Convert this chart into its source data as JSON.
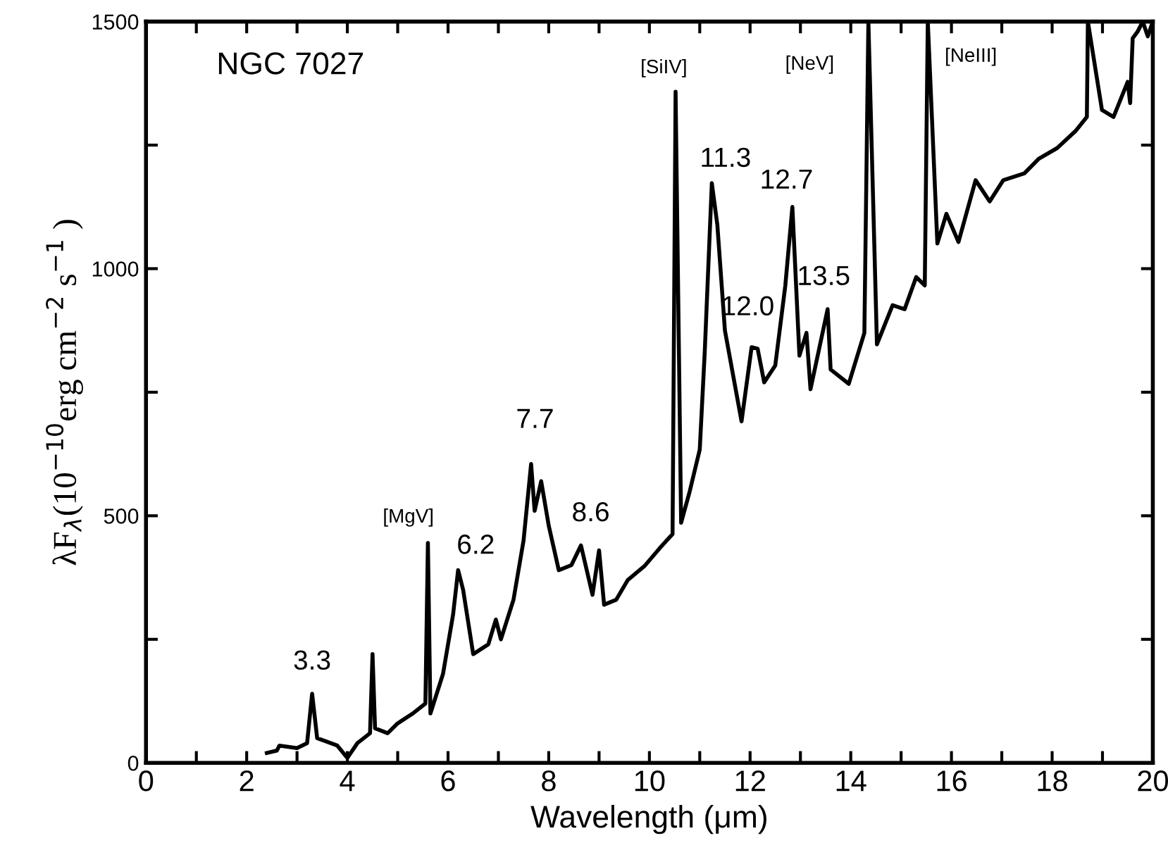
{
  "chart_data": {
    "type": "line",
    "title": "NGC 7027",
    "xlabel": "Wavelength (μm)",
    "ylabel": "λF$_{λ}$(10$^{−10}$erg cm$^{−2}$ s$^{−1}$ )",
    "xlim": [
      0,
      20
    ],
    "ylim": [
      0,
      1500
    ],
    "xticks": [
      0,
      {
        "value": 1,
        "label": null
      },
      2,
      {
        "value": 3,
        "label": null
      },
      4,
      {
        "value": 5,
        "label": null
      },
      6,
      {
        "value": 7,
        "label": null
      },
      8,
      {
        "value": 9,
        "label": null
      },
      10,
      {
        "value": 11,
        "label": null
      },
      12,
      {
        "value": 13,
        "label": null
      },
      14,
      {
        "value": 15,
        "label": null
      },
      16,
      {
        "value": 17,
        "label": null
      },
      18,
      {
        "value": 19,
        "label": null
      },
      20
    ],
    "yticks": [
      0,
      {
        "value": 250,
        "label": null
      },
      500,
      {
        "value": 750,
        "label": null
      },
      1000,
      {
        "value": 1250,
        "label": null
      },
      1500
    ],
    "grid": false,
    "legend": false,
    "series": [
      {
        "color": "#000000",
        "x": [
          2.4,
          2.6,
          2.65,
          3.0,
          3.2,
          3.3,
          3.4,
          3.8,
          4.0,
          4.2,
          4.45,
          4.5,
          4.55,
          4.8,
          5.0,
          5.3,
          5.55,
          5.6,
          5.65,
          5.9,
          6.1,
          6.2,
          6.3,
          6.5,
          6.8,
          6.95,
          7.05,
          7.3,
          7.5,
          7.65,
          7.72,
          7.85,
          8.0,
          8.2,
          8.45,
          8.64,
          8.87,
          9.0,
          9.1,
          9.34,
          9.57,
          9.9,
          10.21,
          10.46,
          10.52,
          10.63,
          10.8,
          11.0,
          11.1,
          11.24,
          11.35,
          11.5,
          11.83,
          12.03,
          12.15,
          12.28,
          12.5,
          12.7,
          12.84,
          12.98,
          13.12,
          13.2,
          13.54,
          13.6,
          13.96,
          14.27,
          14.35,
          14.52,
          14.83,
          15.07,
          15.3,
          15.47,
          15.53,
          15.72,
          15.9,
          16.14,
          16.48,
          16.76,
          17.03,
          17.45,
          17.73,
          18.1,
          18.46,
          18.69,
          18.71,
          18.99,
          19.22,
          19.5,
          19.55,
          19.6,
          19.7,
          19.8,
          19.9,
          20.0
        ],
        "values": [
          20,
          25,
          35,
          30,
          40,
          140,
          50,
          35,
          10,
          40,
          60,
          220,
          70,
          60,
          80,
          100,
          120,
          445,
          100,
          180,
          300,
          390,
          350,
          220,
          240,
          290,
          250,
          330,
          450,
          605,
          510,
          570,
          480,
          390,
          400,
          440,
          340,
          430,
          320,
          330,
          370,
          398,
          435,
          463,
          1358,
          486,
          549,
          634,
          833,
          1173,
          1088,
          875,
          691,
          841,
          838,
          770,
          804,
          966,
          1125,
          824,
          870,
          756,
          918,
          796,
          767,
          870,
          1500,
          847,
          926,
          918,
          983,
          966,
          1500,
          1051,
          1111,
          1054,
          1179,
          1136,
          1179,
          1193,
          1222,
          1244,
          1278,
          1307,
          1500,
          1321,
          1307,
          1378,
          1335,
          1466,
          1480,
          1500,
          1470,
          1500
        ]
      }
    ],
    "annotations": [
      {
        "text": "3.3",
        "x": 3.3,
        "y": 140
      },
      {
        "text": "[MgV]",
        "x": 5.6,
        "y": 445
      },
      {
        "text": "6.2",
        "x": 6.2,
        "y": 390
      },
      {
        "text": "7.7",
        "x": 7.65,
        "y": 605
      },
      {
        "text": "8.6",
        "x": 8.64,
        "y": 440
      },
      {
        "text": "[SiIV]",
        "x": 10.52,
        "y": 1358
      },
      {
        "text": "11.3",
        "x": 11.24,
        "y": 1173
      },
      {
        "text": "12.0",
        "x": 12.03,
        "y": 841
      },
      {
        "text": "12.7",
        "x": 12.84,
        "y": 1125
      },
      {
        "text": "[NeV]",
        "x": 14.35,
        "y": 1500
      },
      {
        "text": "13.5",
        "x": 13.54,
        "y": 918
      },
      {
        "text": "[NeIII]",
        "x": 15.53,
        "y": 1500
      }
    ]
  }
}
